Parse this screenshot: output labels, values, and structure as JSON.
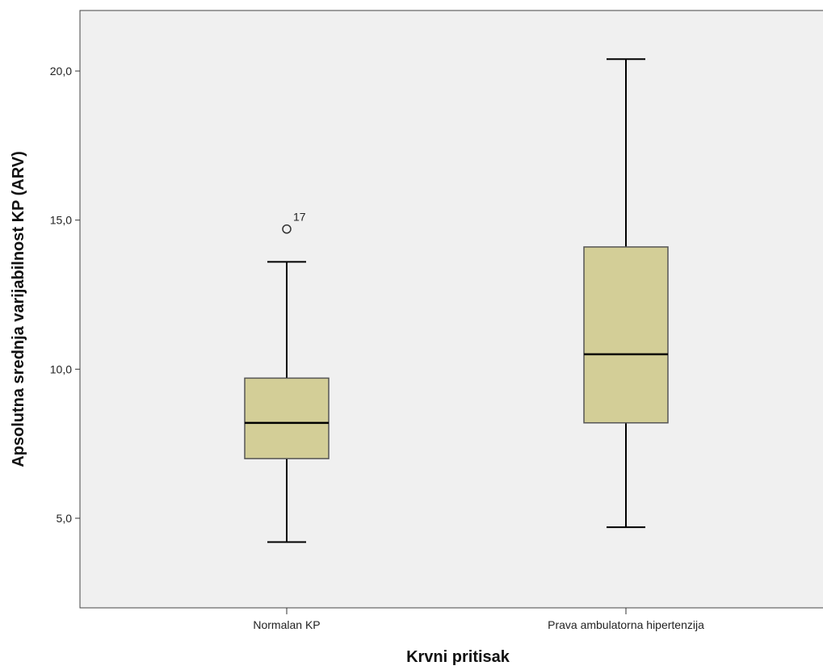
{
  "chart_data": {
    "type": "boxplot",
    "xlabel": "Krvni pritisak",
    "ylabel": "Apsolutna srednja varijabilnost KP (ARV)",
    "ylim": [
      2.0,
      21.8
    ],
    "yticks": [
      5.0,
      10.0,
      15.0,
      20.0
    ],
    "ytick_labels": [
      "5,0",
      "10,0",
      "15,0",
      "20,0"
    ],
    "grid": false,
    "categories": [
      "Normalan KP",
      "Prava ambulatorna hipertenzija"
    ],
    "boxes": [
      {
        "category": "Normalan KP",
        "whisker_low": 4.2,
        "q1": 7.0,
        "median": 8.2,
        "q3": 9.7,
        "whisker_high": 13.6,
        "outliers": [
          {
            "value": 14.7,
            "label": "17"
          }
        ]
      },
      {
        "category": "Prava ambulatorna hipertenzija",
        "whisker_low": 4.7,
        "q1": 8.2,
        "median": 10.5,
        "q3": 14.1,
        "whisker_high": 20.4,
        "outliers": []
      }
    ],
    "colors": {
      "plot_background": "#f0f0f0",
      "box_fill": "#d3ce97",
      "box_stroke": "#555555",
      "line": "#000000"
    }
  }
}
